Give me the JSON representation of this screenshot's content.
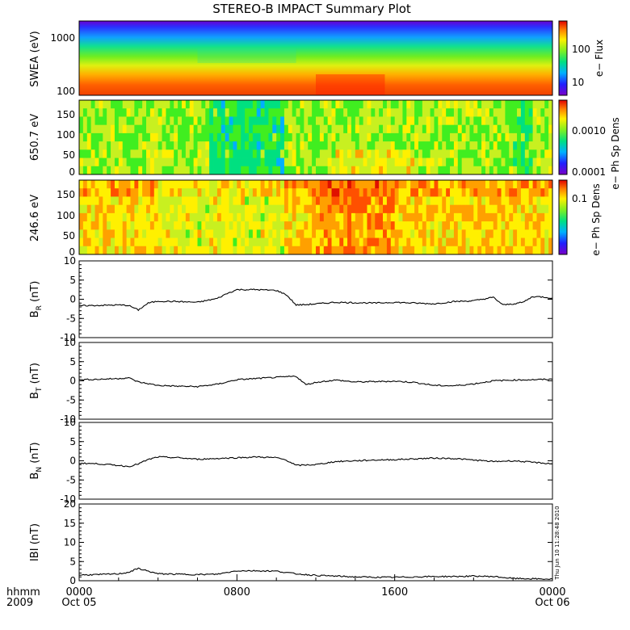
{
  "title": "STEREO-B IMPACT Summary Plot",
  "footer": {
    "hhmm": "hhmm",
    "year": "2009",
    "day_start": "Oct 05",
    "day_end": "Oct 06",
    "timestamp": "Thu Jun 10 11:28:48 2010"
  },
  "colors": {
    "trace": "#000000",
    "colormap": [
      "#7a00c8",
      "#2020ff",
      "#00b0ff",
      "#00e080",
      "#40ee20",
      "#c8f020",
      "#fff000",
      "#ffa000",
      "#ff5000",
      "#e01000"
    ]
  },
  "chart_data": [
    {
      "type": "heatmap",
      "ylabel": "SWEA (eV)",
      "yscale": "log",
      "yticks": [
        "1000",
        "100"
      ],
      "colorbar_label": "e− Flux",
      "colorbar_ticks": [
        "100",
        "10"
      ],
      "description_of_values": "electron flux vs energy (~90–2000 eV) and time; high at low energy, low at high energy"
    },
    {
      "type": "heatmap",
      "ylabel": "650.7 eV",
      "yticks": [
        "150",
        "100",
        "50",
        "0"
      ],
      "ylim": [
        0,
        180
      ],
      "colorbar_label": "e− Ph Sp Dens",
      "colorbar_ticks": [
        "0.0010",
        "0.0001"
      ]
    },
    {
      "type": "heatmap",
      "ylabel": "246.6 eV",
      "yticks": [
        "150",
        "100",
        "50",
        "0"
      ],
      "ylim": [
        0,
        180
      ],
      "colorbar_label": "e− Ph Sp Dens",
      "colorbar_ticks": [
        "0.1"
      ]
    },
    {
      "type": "line",
      "ylabel": "B_R (nT)",
      "ylabel_main": "B",
      "ylabel_sub": "R",
      "ylabel_unit": " (nT)",
      "ylim": [
        -10,
        10
      ],
      "yticks": [
        "10",
        "5",
        "0",
        "-5",
        "-10"
      ],
      "x_hours": [
        0,
        1,
        2,
        2.5,
        3,
        3.5,
        4,
        5,
        6,
        7,
        7.5,
        8,
        9,
        10,
        10.5,
        11,
        11.5,
        12,
        13,
        14,
        15,
        16,
        17,
        18,
        19,
        20,
        21,
        21.5,
        22,
        22.5,
        23,
        23.5,
        24
      ],
      "values": [
        -1.7,
        -1.6,
        -1.5,
        -1.6,
        -2.8,
        -1.0,
        -0.5,
        -0.6,
        -0.8,
        0.2,
        1.5,
        2.5,
        2.5,
        2.3,
        1.2,
        -1.5,
        -1.4,
        -1.2,
        -0.8,
        -0.9,
        -1.0,
        -0.8,
        -1.0,
        -1.2,
        -0.6,
        -0.4,
        0.5,
        -1.5,
        -1.2,
        -0.8,
        0.7,
        0.6,
        0.3
      ]
    },
    {
      "type": "line",
      "ylabel": "B_T (nT)",
      "ylabel_main": "B",
      "ylabel_sub": "T",
      "ylabel_unit": " (nT)",
      "ylim": [
        -10,
        10
      ],
      "yticks": [
        "10",
        "5",
        "0",
        "-5",
        "-10"
      ],
      "x_hours": [
        0,
        1,
        2,
        2.5,
        3,
        4,
        5,
        6,
        7,
        8,
        9,
        10,
        11,
        11.5,
        12,
        13,
        14,
        15,
        16,
        17,
        18,
        19,
        20,
        21,
        22,
        23,
        24
      ],
      "values": [
        0.3,
        0.4,
        0.6,
        0.8,
        -0.3,
        -1.2,
        -1.4,
        -1.5,
        -0.9,
        0.3,
        0.6,
        0.9,
        1.2,
        -1.0,
        -0.4,
        0.2,
        -0.3,
        -0.2,
        -0.1,
        -0.4,
        -1.2,
        -1.3,
        -0.8,
        0.0,
        0.2,
        0.3,
        0.4
      ]
    },
    {
      "type": "line",
      "ylabel": "B_N (nT)",
      "ylabel_main": "B",
      "ylabel_sub": "N",
      "ylabel_unit": " (nT)",
      "ylim": [
        -10,
        10
      ],
      "yticks": [
        "10",
        "5",
        "0",
        "-5",
        "-10"
      ],
      "x_hours": [
        0,
        1,
        2,
        2.5,
        3,
        3.5,
        4,
        5,
        6,
        7,
        8,
        9,
        10,
        10.5,
        11,
        12,
        13,
        14,
        15,
        16,
        17,
        18,
        19,
        20,
        21,
        22,
        23,
        24
      ],
      "values": [
        -0.6,
        -0.8,
        -1.2,
        -1.5,
        -0.8,
        0.3,
        1.0,
        0.8,
        0.4,
        0.6,
        0.8,
        1.0,
        0.8,
        0.2,
        -1.2,
        -1.0,
        -0.2,
        0.0,
        0.2,
        0.3,
        0.5,
        0.7,
        0.6,
        0.2,
        -0.2,
        0.0,
        -0.4,
        -0.8
      ]
    },
    {
      "type": "line",
      "ylabel": "|B| (nT)",
      "ylabel_main": "IBI",
      "ylabel_sub": "",
      "ylabel_unit": " (nT)",
      "ylim": [
        0,
        20
      ],
      "yticks": [
        "20",
        "15",
        "10",
        "5",
        "0"
      ],
      "x_hours": [
        0,
        1,
        2,
        2.5,
        3,
        3.5,
        4,
        5,
        6,
        7,
        8,
        9,
        10,
        11,
        12,
        13,
        14,
        15,
        16,
        17,
        18,
        19,
        20,
        21,
        22,
        23,
        24
      ],
      "values": [
        1.5,
        1.6,
        1.8,
        2.2,
        3.2,
        2.5,
        1.8,
        1.7,
        1.6,
        1.7,
        2.6,
        2.6,
        2.5,
        1.8,
        1.4,
        1.2,
        1.0,
        0.9,
        0.9,
        1.0,
        1.1,
        1.1,
        1.2,
        1.1,
        0.6,
        0.5,
        0.4
      ]
    }
  ],
  "xaxis": {
    "ticks": [
      "0000",
      "0800",
      "1600",
      "0000"
    ],
    "tick_hours": [
      0,
      8,
      16,
      24
    ]
  }
}
